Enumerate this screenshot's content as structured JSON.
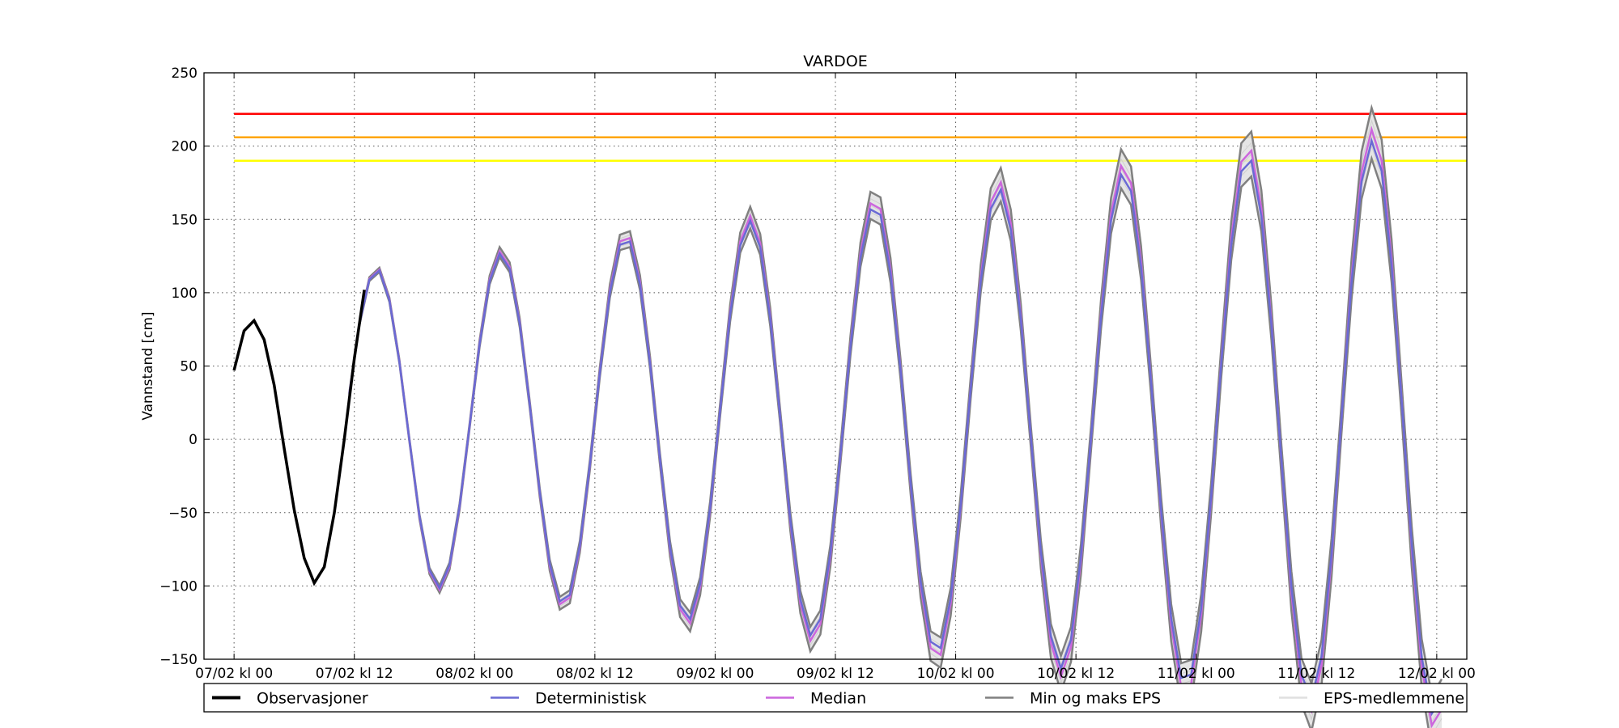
{
  "chart_data": {
    "type": "line",
    "title": "VARDOE",
    "xlabel": "",
    "ylabel": "Vannstand [cm]",
    "ylim": [
      -150,
      250
    ],
    "yticks": [
      -150,
      -100,
      -50,
      0,
      50,
      100,
      150,
      200,
      250
    ],
    "x_range_hours": [
      -3,
      123
    ],
    "xticks": [
      {
        "hour": 0,
        "label": "07/02 kl 00"
      },
      {
        "hour": 12,
        "label": "07/02 kl 12"
      },
      {
        "hour": 24,
        "label": "08/02 kl 00"
      },
      {
        "hour": 36,
        "label": "08/02 kl 12"
      },
      {
        "hour": 48,
        "label": "09/02 kl 00"
      },
      {
        "hour": 60,
        "label": "09/02 kl 12"
      },
      {
        "hour": 72,
        "label": "10/02 kl 00"
      },
      {
        "hour": 84,
        "label": "10/02 kl 12"
      },
      {
        "hour": 96,
        "label": "11/02 kl 00"
      },
      {
        "hour": 108,
        "label": "11/02 kl 12"
      },
      {
        "hour": 120,
        "label": "12/02 kl 00"
      }
    ],
    "grid": true,
    "legend_position": "bottom",
    "thresholds": [
      {
        "value": 222,
        "color": "#ff0000"
      },
      {
        "value": 206,
        "color": "#ffa500"
      },
      {
        "value": 190,
        "color": "#ffff00"
      }
    ],
    "forecast_tidal": {
      "start_hour": 11.5,
      "end_hour": 121,
      "step_hours": 1,
      "period_hours": 12.42,
      "first_high_hour": 14.2,
      "mean": 10,
      "amplitude_start": 104,
      "amplitude_growth_per_hour": 0.93,
      "spread_start": 1,
      "spread_growth_per_hour": 0.16
    },
    "series": [
      {
        "name": "Observasjoner",
        "color": "#000000",
        "x": [
          0,
          1,
          2,
          3,
          4,
          5,
          6,
          7,
          8,
          9,
          10,
          11,
          12,
          13,
          14
        ],
        "y": [
          47,
          74,
          81,
          68,
          37,
          -6,
          -48,
          -81,
          -98,
          -87,
          -50,
          0,
          55,
          102,
          120
        ]
      },
      {
        "name": "Deterministisk",
        "color": "#6a6ad4"
      },
      {
        "name": "Median",
        "color": "#cc66dd"
      },
      {
        "name": "Min og maks EPS",
        "color": "#808080"
      },
      {
        "name": "EPS-medlemmene",
        "color": "#e0e0e0"
      }
    ]
  }
}
